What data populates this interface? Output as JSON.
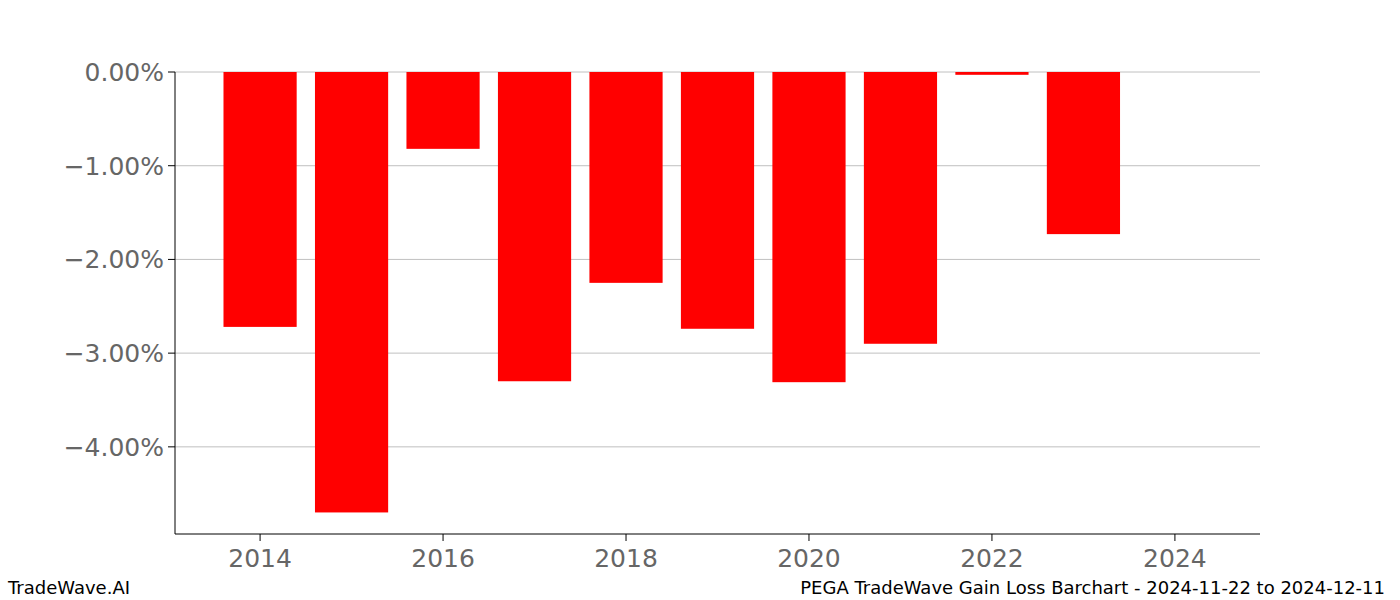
{
  "chart_data": {
    "type": "bar",
    "title": "PEGA TradeWave Gain Loss Barchart - 2024-11-22 to 2024-12-11",
    "source": "TradeWave.AI",
    "x": [
      2014,
      2015,
      2016,
      2017,
      2018,
      2019,
      2020,
      2021,
      2022,
      2023
    ],
    "values": [
      -2.72,
      -4.7,
      -0.82,
      -3.3,
      -2.25,
      -2.74,
      -3.31,
      -2.9,
      -0.03,
      -1.73
    ],
    "color": "#ff0000",
    "xlim": [
      2013.07,
      2024.93
    ],
    "xticks": [
      2014,
      2016,
      2018,
      2020,
      2022,
      2024
    ],
    "ylim": [
      -4.93,
      0
    ],
    "yticks": [
      {
        "value": 0,
        "label": "0.00%"
      },
      {
        "value": -1,
        "label": "−1.00%"
      },
      {
        "value": -2,
        "label": "−2.00%"
      },
      {
        "value": -3,
        "label": "−3.00%"
      },
      {
        "value": -4,
        "label": "−4.00%"
      }
    ],
    "grid": true
  }
}
